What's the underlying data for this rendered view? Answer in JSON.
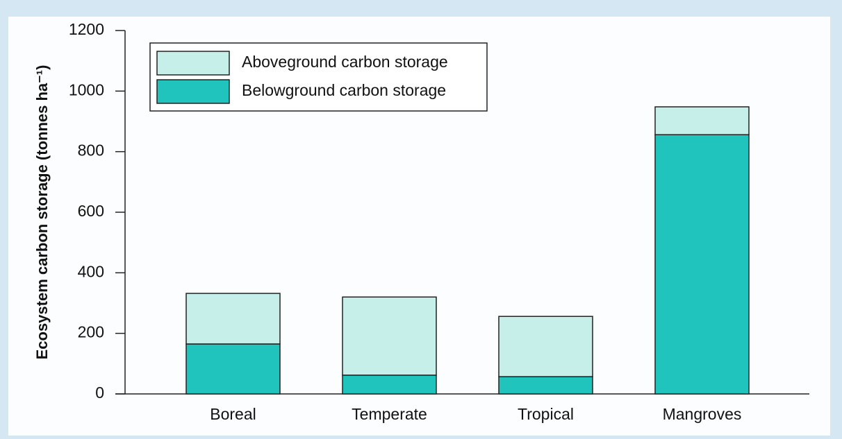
{
  "chart_data": {
    "type": "stacked-bar",
    "y_label": "Ecosystem carbon storage (tonnes ha⁻¹)",
    "categories": [
      "Boreal",
      "Temperate",
      "Tropical",
      "Mangroves"
    ],
    "series": [
      {
        "name": "Belowground carbon storage",
        "color": "#20c4bd",
        "values": [
          165,
          62,
          57,
          856
        ]
      },
      {
        "name": "Aboveground carbon storage",
        "color": "#c6efea",
        "values": [
          167,
          258,
          199,
          92
        ]
      }
    ],
    "ylim": [
      0,
      1200
    ],
    "yticks": [
      0,
      200,
      400,
      600,
      800,
      1000,
      1200
    ]
  }
}
